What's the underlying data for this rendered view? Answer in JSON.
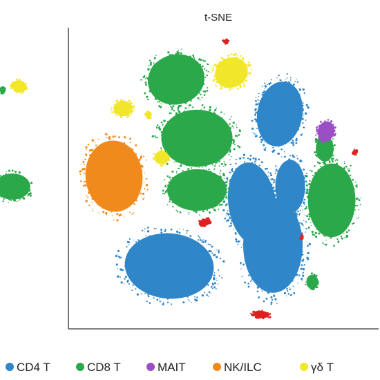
{
  "chart_data": [
    {
      "type": "scatter",
      "title": "",
      "xlabel": "",
      "ylabel": "",
      "grid": false,
      "cropped": true,
      "note_series": [
        "CD8 T",
        "γδ T"
      ]
    },
    {
      "type": "scatter",
      "title": "t-SNE",
      "xlabel": "",
      "ylabel": "",
      "grid": false,
      "legend_position": "bottom",
      "series": [
        {
          "name": "CD4 T",
          "color": "#2f86c9"
        },
        {
          "name": "CD8 T",
          "color": "#2aa84a"
        },
        {
          "name": "MAIT",
          "color": "#9b4fc4"
        },
        {
          "name": "NK/ILC",
          "color": "#f08a1c"
        },
        {
          "name": "γδ T",
          "color": "#f2e62a"
        }
      ],
      "minor_cluster_color": "#e02020"
    }
  ],
  "legend": {
    "items": [
      {
        "label": "CD4 T",
        "color": "#2f86c9"
      },
      {
        "label": "CD8 T",
        "color": "#2aa84a"
      },
      {
        "label": "MAIT",
        "color": "#9b4fc4"
      },
      {
        "label": "NK/ILC",
        "color": "#f08a1c"
      },
      {
        "label": "γδ T",
        "color": "#f2e62a"
      }
    ]
  }
}
